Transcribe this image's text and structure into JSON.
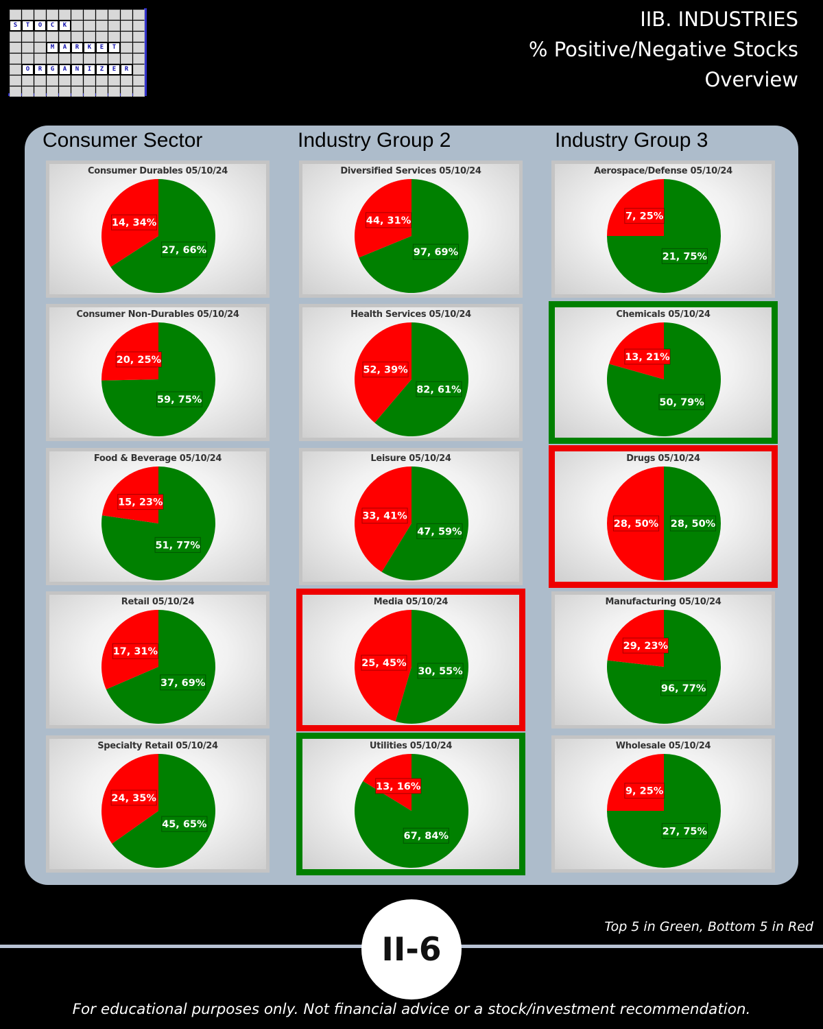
{
  "logo": {
    "words": [
      "STOCK",
      "MARKET",
      "ORGANIZER"
    ]
  },
  "header": {
    "line1": "IIB. INDUSTRIES",
    "line2": "% Positive/Negative Stocks",
    "line3": "Overview"
  },
  "columns": [
    {
      "title": "Consumer Sector"
    },
    {
      "title": "Industry Group 2"
    },
    {
      "title": "Industry Group 3"
    }
  ],
  "colors": {
    "positive": "#008000",
    "negative": "#ff0000",
    "top_highlight": "#008000",
    "bottom_highlight": "#ee0000",
    "panel": "#adbccb"
  },
  "chart_data": [
    {
      "type": "pie",
      "title": "Consumer Durables 05/10/24",
      "column": 0,
      "row": 0,
      "highlight": "none",
      "positive": {
        "count": 27,
        "pct": "66%"
      },
      "negative": {
        "count": 14,
        "pct": "34%"
      }
    },
    {
      "type": "pie",
      "title": "Consumer Non-Durables 05/10/24",
      "column": 0,
      "row": 1,
      "highlight": "none",
      "positive": {
        "count": 59,
        "pct": "75%"
      },
      "negative": {
        "count": 20,
        "pct": "25%"
      }
    },
    {
      "type": "pie",
      "title": "Food & Beverage 05/10/24",
      "column": 0,
      "row": 2,
      "highlight": "none",
      "positive": {
        "count": 51,
        "pct": "77%"
      },
      "negative": {
        "count": 15,
        "pct": "23%"
      }
    },
    {
      "type": "pie",
      "title": "Retail 05/10/24",
      "column": 0,
      "row": 3,
      "highlight": "none",
      "positive": {
        "count": 37,
        "pct": "69%"
      },
      "negative": {
        "count": 17,
        "pct": "31%"
      }
    },
    {
      "type": "pie",
      "title": "Specialty Retail 05/10/24",
      "column": 0,
      "row": 4,
      "highlight": "none",
      "positive": {
        "count": 45,
        "pct": "65%"
      },
      "negative": {
        "count": 24,
        "pct": "35%"
      }
    },
    {
      "type": "pie",
      "title": "Diversified Services 05/10/24",
      "column": 1,
      "row": 0,
      "highlight": "none",
      "positive": {
        "count": 97,
        "pct": "69%"
      },
      "negative": {
        "count": 44,
        "pct": "31%"
      }
    },
    {
      "type": "pie",
      "title": "Health Services 05/10/24",
      "column": 1,
      "row": 1,
      "highlight": "none",
      "positive": {
        "count": 82,
        "pct": "61%"
      },
      "negative": {
        "count": 52,
        "pct": "39%"
      }
    },
    {
      "type": "pie",
      "title": "Leisure 05/10/24",
      "column": 1,
      "row": 2,
      "highlight": "none",
      "positive": {
        "count": 47,
        "pct": "59%"
      },
      "negative": {
        "count": 33,
        "pct": "41%"
      }
    },
    {
      "type": "pie",
      "title": "Media 05/10/24",
      "column": 1,
      "row": 3,
      "highlight": "bottom",
      "positive": {
        "count": 30,
        "pct": "55%"
      },
      "negative": {
        "count": 25,
        "pct": "45%"
      }
    },
    {
      "type": "pie",
      "title": "Utilities 05/10/24",
      "column": 1,
      "row": 4,
      "highlight": "top",
      "positive": {
        "count": 67,
        "pct": "84%"
      },
      "negative": {
        "count": 13,
        "pct": "16%"
      }
    },
    {
      "type": "pie",
      "title": "Aerospace/Defense 05/10/24",
      "column": 2,
      "row": 0,
      "highlight": "none",
      "positive": {
        "count": 21,
        "pct": "75%"
      },
      "negative": {
        "count": 7,
        "pct": "25%"
      }
    },
    {
      "type": "pie",
      "title": "Chemicals 05/10/24",
      "column": 2,
      "row": 1,
      "highlight": "top",
      "positive": {
        "count": 50,
        "pct": "79%"
      },
      "negative": {
        "count": 13,
        "pct": "21%"
      }
    },
    {
      "type": "pie",
      "title": "Drugs 05/10/24",
      "column": 2,
      "row": 2,
      "highlight": "bottom",
      "positive": {
        "count": 28,
        "pct": "50%"
      },
      "negative": {
        "count": 28,
        "pct": "50%"
      }
    },
    {
      "type": "pie",
      "title": "Manufacturing 05/10/24",
      "column": 2,
      "row": 3,
      "highlight": "none",
      "positive": {
        "count": 96,
        "pct": "77%"
      },
      "negative": {
        "count": 29,
        "pct": "23%"
      }
    },
    {
      "type": "pie",
      "title": "Wholesale 05/10/24",
      "column": 2,
      "row": 4,
      "highlight": "none",
      "positive": {
        "count": 27,
        "pct": "75%"
      },
      "negative": {
        "count": 9,
        "pct": "25%"
      }
    }
  ],
  "footer": {
    "note": "Top 5 in Green, Bottom 5 in Red",
    "badge": "II-6",
    "disclaimer": "For educational purposes only. Not financial advice or a stock/investment recommendation."
  }
}
